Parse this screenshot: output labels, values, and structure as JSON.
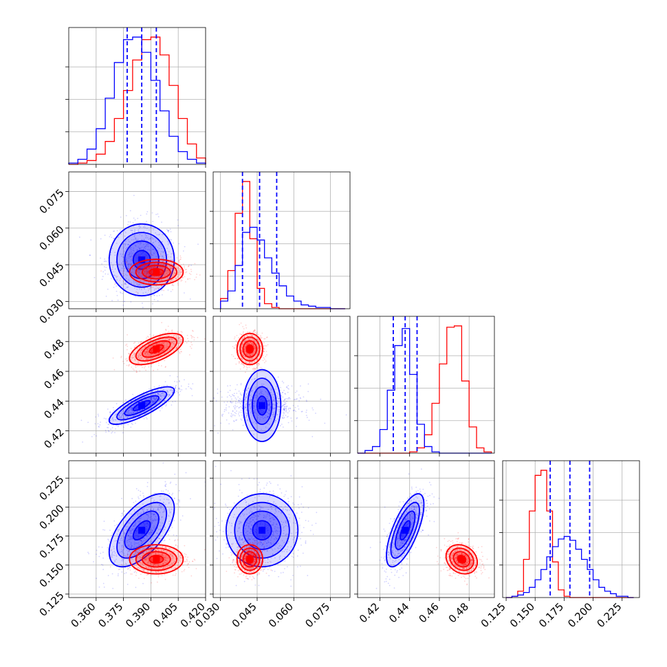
{
  "chart_data": {
    "type": "corner",
    "parameters": 4,
    "grid": true,
    "series": [
      {
        "color": "#0000ff"
      },
      {
        "color": "#ff0000"
      }
    ],
    "colors": {
      "blue": "#0000ff",
      "red": "#ff0000"
    },
    "means": {
      "blue": [
        0.385,
        0.047,
        0.437,
        0.18
      ],
      "red": [
        0.393,
        0.042,
        0.475,
        0.155
      ]
    },
    "stds": {
      "blue": [
        0.0085,
        0.007,
        0.006,
        0.015
      ],
      "red": [
        0.007,
        0.0025,
        0.005,
        0.006
      ]
    },
    "correlations": {
      "blue": {
        "2-0": 0.8,
        "3-0": 0.6,
        "3-2": 0.7
      },
      "red": {
        "2-0": 0.6,
        "3-2": -0.2
      }
    },
    "quantile_lines": [
      [
        0.377,
        0.385,
        0.393
      ],
      [
        0.039,
        0.046,
        0.053
      ],
      [
        0.429,
        0.437,
        0.445
      ],
      [
        0.163,
        0.18,
        0.197
      ]
    ],
    "histograms": [
      {
        "x": [
          0.345,
          0.35,
          0.355,
          0.36,
          0.365,
          0.37,
          0.375,
          0.38,
          0.385,
          0.39,
          0.395,
          0.4,
          0.405,
          0.41,
          0.415,
          0.42
        ],
        "blue": [
          1,
          4,
          12,
          28,
          52,
          80,
          98,
          100,
          88,
          66,
          42,
          22,
          10,
          4,
          1
        ],
        "red": [
          0,
          1,
          3,
          8,
          18,
          36,
          58,
          82,
          98,
          100,
          86,
          62,
          36,
          16,
          5
        ]
      },
      {
        "x": [
          0.03,
          0.033,
          0.036,
          0.039,
          0.042,
          0.045,
          0.048,
          0.051,
          0.054,
          0.057,
          0.06,
          0.063,
          0.066,
          0.069,
          0.072,
          0.075,
          0.078,
          0.081
        ],
        "blue": [
          6,
          14,
          34,
          60,
          64,
          54,
          40,
          28,
          18,
          10,
          6,
          3,
          2,
          1,
          1,
          0,
          0
        ],
        "red": [
          8,
          30,
          75,
          100,
          55,
          16,
          4,
          1,
          0,
          0,
          0,
          0,
          0,
          0,
          0,
          0,
          0
        ]
      },
      {
        "x": [
          0.405,
          0.41,
          0.415,
          0.42,
          0.425,
          0.43,
          0.435,
          0.44,
          0.445,
          0.45,
          0.455,
          0.46,
          0.465,
          0.47,
          0.475,
          0.48,
          0.485,
          0.49,
          0.495
        ],
        "blue": [
          0,
          2,
          5,
          18,
          48,
          82,
          95,
          60,
          22,
          5,
          1,
          0,
          0,
          0,
          0,
          0,
          0,
          0
        ],
        "red": [
          0,
          0,
          0,
          0,
          0,
          0,
          0,
          1,
          4,
          14,
          38,
          68,
          96,
          97,
          55,
          20,
          4,
          1
        ]
      },
      {
        "x": [
          0.125,
          0.13,
          0.135,
          0.14,
          0.145,
          0.15,
          0.155,
          0.16,
          0.165,
          0.17,
          0.175,
          0.18,
          0.185,
          0.19,
          0.195,
          0.2,
          0.205,
          0.21,
          0.215,
          0.22,
          0.225,
          0.23,
          0.235
        ],
        "blue": [
          0,
          1,
          2,
          4,
          8,
          14,
          22,
          32,
          40,
          46,
          48,
          45,
          38,
          30,
          22,
          14,
          8,
          5,
          3,
          1,
          1,
          0
        ],
        "red": [
          0,
          1,
          5,
          30,
          68,
          96,
          100,
          68,
          28,
          6,
          1,
          0,
          0,
          0,
          0,
          0,
          0,
          0,
          0,
          0,
          0,
          0
        ]
      }
    ],
    "axes": [
      {
        "range": [
          0.345,
          0.42
        ],
        "ticks": [
          "0.360",
          "0.375",
          "0.390",
          "0.405",
          "0.420"
        ],
        "tick_values": [
          0.36,
          0.375,
          0.39,
          0.405,
          0.42
        ]
      },
      {
        "range": [
          0.027,
          0.083
        ],
        "ticks": [
          "0.030",
          "0.045",
          "0.060",
          "0.075"
        ],
        "tick_values": [
          0.03,
          0.045,
          0.06,
          0.075
        ]
      },
      {
        "range": [
          0.405,
          0.497
        ],
        "ticks": [
          "0.42",
          "0.44",
          "0.46",
          "0.48"
        ],
        "tick_values": [
          0.42,
          0.44,
          0.46,
          0.48
        ]
      },
      {
        "range": [
          0.122,
          0.24
        ],
        "ticks": [
          "0.125",
          "0.150",
          "0.175",
          "0.200",
          "0.225"
        ],
        "tick_values": [
          0.125,
          0.15,
          0.175,
          0.2,
          0.225
        ]
      }
    ]
  }
}
